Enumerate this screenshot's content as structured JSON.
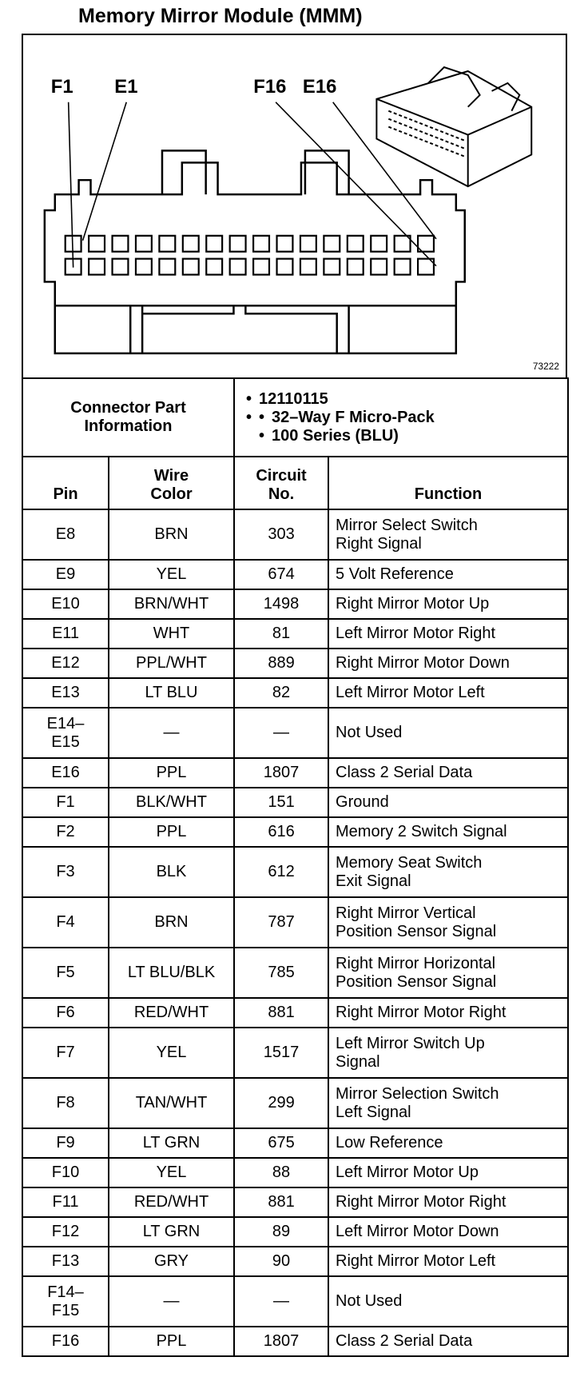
{
  "title": "Memory Mirror Module (MMM)",
  "figure": {
    "labels": [
      "F1",
      "E1",
      "F16",
      "E16"
    ],
    "code": "73222"
  },
  "connector": {
    "label": "Connector Part Information",
    "items": [
      "12110115",
      [
        "32–Way F Micro-Pack",
        "100 Series (BLU)"
      ]
    ]
  },
  "table": {
    "headers": [
      "Pin",
      [
        "Wire",
        "Color"
      ],
      [
        "Circuit",
        "No."
      ],
      "Function"
    ],
    "rows": [
      [
        "E8",
        "BRN",
        "303",
        [
          "Mirror Select Switch",
          "Right Signal"
        ]
      ],
      [
        "E9",
        "YEL",
        "674",
        "5 Volt Reference"
      ],
      [
        "E10",
        "BRN/WHT",
        "1498",
        "Right Mirror Motor Up"
      ],
      [
        "E11",
        "WHT",
        "81",
        "Left Mirror Motor Right"
      ],
      [
        "E12",
        "PPL/WHT",
        "889",
        "Right Mirror Motor Down"
      ],
      [
        "E13",
        "LT BLU",
        "82",
        "Left Mirror Motor Left"
      ],
      [
        [
          "E14–",
          "E15"
        ],
        "—",
        "—",
        "Not Used"
      ],
      [
        "E16",
        "PPL",
        "1807",
        "Class 2 Serial Data"
      ],
      [
        "F1",
        "BLK/WHT",
        "151",
        "Ground"
      ],
      [
        "F2",
        "PPL",
        "616",
        "Memory 2 Switch Signal"
      ],
      [
        "F3",
        "BLK",
        "612",
        [
          "Memory Seat Switch",
          "Exit Signal"
        ]
      ],
      [
        "F4",
        "BRN",
        "787",
        [
          "Right Mirror Vertical",
          "Position Sensor Signal"
        ]
      ],
      [
        "F5",
        "LT BLU/BLK",
        "785",
        [
          "Right Mirror Horizontal",
          "Position Sensor Signal"
        ]
      ],
      [
        "F6",
        "RED/WHT",
        "881",
        "Right Mirror Motor Right"
      ],
      [
        "F7",
        "YEL",
        "1517",
        [
          "Left Mirror Switch Up",
          "Signal"
        ]
      ],
      [
        "F8",
        "TAN/WHT",
        "299",
        [
          "Mirror Selection Switch",
          "Left Signal"
        ]
      ],
      [
        "F9",
        "LT GRN",
        "675",
        "Low Reference"
      ],
      [
        "F10",
        "YEL",
        "88",
        "Left Mirror Motor Up"
      ],
      [
        "F11",
        "RED/WHT",
        "881",
        "Right Mirror Motor Right"
      ],
      [
        "F12",
        "LT GRN",
        "89",
        "Left Mirror Motor Down"
      ],
      [
        "F13",
        "GRY",
        "90",
        "Right Mirror Motor Left"
      ],
      [
        [
          "F14–",
          "F15"
        ],
        "—",
        "—",
        "Not Used"
      ],
      [
        "F16",
        "PPL",
        "1807",
        "Class 2 Serial Data"
      ]
    ]
  }
}
